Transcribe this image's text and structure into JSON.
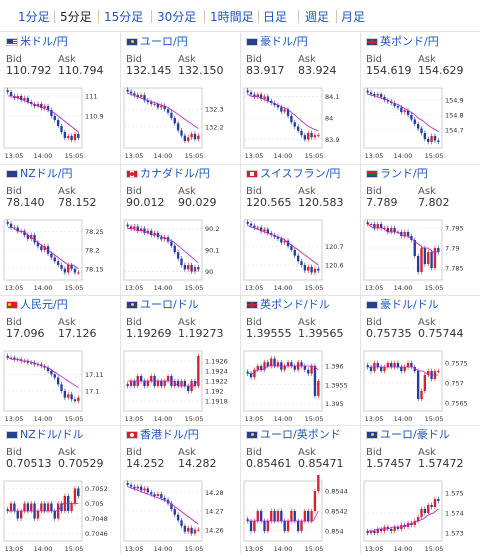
{
  "tabs": [
    {
      "label": "1分足",
      "active": false
    },
    {
      "label": "5分足",
      "active": true
    },
    {
      "label": "15分足",
      "active": false
    },
    {
      "label": "30分足",
      "active": false
    },
    {
      "label": "1時間足",
      "active": false
    },
    {
      "label": "日足",
      "active": false
    },
    {
      "label": "週足",
      "active": false
    },
    {
      "label": "月足",
      "active": false
    }
  ],
  "labels": {
    "bid": "Bid",
    "ask": "Ask"
  },
  "colors": {
    "link": "#1a56c4",
    "up": "#d8202e",
    "down": "#1f3fa5",
    "ma": "#c01cc8",
    "grid": "#dcdcdc"
  },
  "panels": [
    {
      "flag": "us",
      "name": "米ドル/円",
      "bid": "110.792",
      "ask": "110.794",
      "chart_data": {
        "type": "candlestick",
        "x_ticks": [
          "13:05",
          "14:00",
          "15:05"
        ],
        "y_ticks": [
          "111",
          "110.9"
        ],
        "ylim": [
          110.74,
          111.04
        ],
        "closes": [
          111.02,
          111.0,
          110.99,
          111.0,
          110.98,
          110.99,
          110.97,
          110.96,
          110.95,
          110.96,
          110.94,
          110.95,
          110.93,
          110.9,
          110.88,
          110.85,
          110.82,
          110.79,
          110.8,
          110.78,
          110.81,
          110.79
        ],
        "ma": [
          111.0,
          111.0,
          110.99,
          110.98,
          110.97,
          110.96,
          110.95,
          110.94,
          110.93,
          110.92,
          110.9,
          110.88,
          110.86,
          110.84,
          110.82
        ]
      }
    },
    {
      "flag": "eu",
      "name": "ユーロ/円",
      "bid": "132.145",
      "ask": "132.150",
      "chart_data": {
        "type": "candlestick",
        "x_ticks": [
          "13:05",
          "14:00",
          "15:05"
        ],
        "y_ticks": [
          "132.3",
          "132.2"
        ],
        "ylim": [
          132.08,
          132.42
        ],
        "closes": [
          132.4,
          132.39,
          132.38,
          132.37,
          132.38,
          132.35,
          132.34,
          132.33,
          132.33,
          132.31,
          132.32,
          132.3,
          132.28,
          132.25,
          132.22,
          132.18,
          132.15,
          132.12,
          132.14,
          132.16,
          132.13,
          132.15
        ],
        "ma": [
          132.39,
          132.38,
          132.37,
          132.36,
          132.35,
          132.34,
          132.33,
          132.32,
          132.31,
          132.29,
          132.27,
          132.25,
          132.23,
          132.21,
          132.19
        ]
      }
    },
    {
      "flag": "au",
      "name": "豪ドル/円",
      "bid": "83.917",
      "ask": "83.924",
      "chart_data": {
        "type": "candlestick",
        "x_ticks": [
          "13:05",
          "14:00",
          "15:05"
        ],
        "y_ticks": [
          "84.1",
          "84",
          "83.9"
        ],
        "ylim": [
          83.86,
          84.14
        ],
        "closes": [
          84.12,
          84.11,
          84.1,
          84.11,
          84.09,
          84.1,
          84.08,
          84.07,
          84.06,
          84.05,
          84.03,
          84.04,
          84.01,
          83.98,
          83.96,
          83.94,
          83.92,
          83.9,
          83.93,
          83.91,
          83.92,
          83.92
        ],
        "ma": [
          84.11,
          84.1,
          84.1,
          84.09,
          84.08,
          84.07,
          84.06,
          84.05,
          84.04,
          84.02,
          84.0,
          83.98,
          83.96,
          83.95,
          83.94
        ]
      }
    },
    {
      "flag": "gb",
      "name": "英ポンド/円",
      "bid": "154.619",
      "ask": "154.629",
      "chart_data": {
        "type": "candlestick",
        "x_ticks": [
          "13:05",
          "14:00",
          "15:05"
        ],
        "y_ticks": [
          "154.9",
          "154.8",
          "154.7"
        ],
        "ylim": [
          154.58,
          154.98
        ],
        "closes": [
          154.95,
          154.94,
          154.93,
          154.94,
          154.92,
          154.9,
          154.89,
          154.88,
          154.86,
          154.85,
          154.82,
          154.83,
          154.8,
          154.77,
          154.74,
          154.71,
          154.68,
          154.64,
          154.62,
          154.66,
          154.63,
          154.62
        ],
        "ma": [
          154.94,
          154.93,
          154.92,
          154.91,
          154.9,
          154.88,
          154.87,
          154.85,
          154.83,
          154.81,
          154.78,
          154.76,
          154.73,
          154.71,
          154.69
        ]
      }
    },
    {
      "flag": "nz",
      "name": "NZドル/円",
      "bid": "78.140",
      "ask": "78.152",
      "chart_data": {
        "type": "candlestick",
        "x_ticks": [
          "13:05",
          "14:00",
          "15:05"
        ],
        "y_ticks": [
          "78.25",
          "78.2",
          "78.15"
        ],
        "ylim": [
          78.12,
          78.28
        ],
        "closes": [
          78.27,
          78.26,
          78.26,
          78.25,
          78.25,
          78.24,
          78.23,
          78.24,
          78.22,
          78.21,
          78.2,
          78.21,
          78.19,
          78.18,
          78.17,
          78.16,
          78.15,
          78.14,
          78.16,
          78.15,
          78.14,
          78.14
        ],
        "ma": [
          78.26,
          78.26,
          78.25,
          78.25,
          78.24,
          78.23,
          78.22,
          78.21,
          78.2,
          78.19,
          78.18,
          78.17,
          78.16,
          78.16,
          78.15
        ]
      }
    },
    {
      "flag": "ca",
      "name": "カナダドル/円",
      "bid": "90.012",
      "ask": "90.029",
      "chart_data": {
        "type": "candlestick",
        "x_ticks": [
          "13:05",
          "14:00",
          "15:05"
        ],
        "y_ticks": [
          "90.2",
          "90.1",
          "90"
        ],
        "ylim": [
          89.96,
          90.24
        ],
        "closes": [
          90.21,
          90.2,
          90.21,
          90.19,
          90.2,
          90.18,
          90.19,
          90.17,
          90.18,
          90.16,
          90.15,
          90.16,
          90.14,
          90.12,
          90.09,
          90.06,
          90.03,
          90.01,
          90.03,
          90.0,
          90.02,
          90.01
        ],
        "ma": [
          90.2,
          90.2,
          90.19,
          90.19,
          90.18,
          90.17,
          90.17,
          90.16,
          90.15,
          90.14,
          90.12,
          90.1,
          90.08,
          90.06,
          90.04
        ]
      }
    },
    {
      "flag": "ch",
      "name": "スイスフラン/円",
      "bid": "120.565",
      "ask": "120.583",
      "chart_data": {
        "type": "candlestick",
        "x_ticks": [
          "13:05",
          "14:00",
          "15:05"
        ],
        "y_ticks": [
          "120.7",
          "120.6"
        ],
        "ylim": [
          120.52,
          120.84
        ],
        "closes": [
          120.82,
          120.81,
          120.8,
          120.8,
          120.78,
          120.79,
          120.77,
          120.76,
          120.75,
          120.74,
          120.72,
          120.73,
          120.7,
          120.68,
          120.65,
          120.62,
          120.6,
          120.57,
          120.59,
          120.56,
          120.58,
          120.57
        ],
        "ma": [
          120.81,
          120.8,
          120.79,
          120.78,
          120.77,
          120.76,
          120.75,
          120.74,
          120.72,
          120.7,
          120.68,
          120.66,
          120.64,
          120.62,
          120.6
        ]
      }
    },
    {
      "flag": "za",
      "name": "ランド/円",
      "bid": "7.789",
      "ask": "7.802",
      "chart_data": {
        "type": "candlestick",
        "x_ticks": [
          "13:05",
          "14:00",
          "15:05"
        ],
        "y_ticks": [
          "7.795",
          "7.79",
          "7.785"
        ],
        "ylim": [
          7.782,
          7.797
        ],
        "closes": [
          7.796,
          7.796,
          7.795,
          7.796,
          7.795,
          7.795,
          7.794,
          7.795,
          7.794,
          7.794,
          7.793,
          7.794,
          7.793,
          7.792,
          7.788,
          7.784,
          7.79,
          7.786,
          7.789,
          7.785,
          7.79,
          7.789
        ],
        "ma": [
          7.796,
          7.795,
          7.795,
          7.795,
          7.794,
          7.794,
          7.794,
          7.793,
          7.793,
          7.792,
          7.791,
          7.79,
          7.79,
          7.789,
          7.789
        ]
      }
    },
    {
      "flag": "cn",
      "name": "人民元/円",
      "bid": "17.096",
      "ask": "17.126",
      "chart_data": {
        "type": "candlestick",
        "x_ticks": [
          "13:05",
          "14:00",
          "15:05"
        ],
        "y_ticks": [
          "17.11",
          "17.1"
        ],
        "ylim": [
          17.088,
          17.124
        ],
        "closes": [
          17.12,
          17.12,
          17.119,
          17.119,
          17.118,
          17.118,
          17.117,
          17.117,
          17.116,
          17.116,
          17.115,
          17.114,
          17.112,
          17.11,
          17.108,
          17.104,
          17.1,
          17.096,
          17.098,
          17.095,
          17.094,
          17.096
        ],
        "ma": [
          17.12,
          17.119,
          17.119,
          17.118,
          17.118,
          17.117,
          17.116,
          17.115,
          17.114,
          17.112,
          17.11,
          17.108,
          17.106,
          17.104,
          17.102
        ]
      }
    },
    {
      "flag": "eu",
      "name": "ユーロ/ドル",
      "bid": "1.19269",
      "ask": "1.19273",
      "chart_data": {
        "type": "candlestick",
        "x_ticks": [
          "13:05",
          "14:00",
          "15:05"
        ],
        "y_ticks": [
          "1.1926",
          "1.1924",
          "1.1922",
          "1.192",
          "1.1918"
        ],
        "ylim": [
          1.1916,
          1.1928
        ],
        "closes": [
          1.1921,
          1.1922,
          1.1921,
          1.1923,
          1.1922,
          1.1921,
          1.1922,
          1.1923,
          1.1921,
          1.1922,
          1.1921,
          1.1922,
          1.1923,
          1.1921,
          1.1922,
          1.1921,
          1.1922,
          1.1921,
          1.192,
          1.1922,
          1.1921,
          1.1927
        ],
        "ma": [
          1.1922,
          1.1922,
          1.1922,
          1.1922,
          1.1922,
          1.1922,
          1.1922,
          1.1922,
          1.1922,
          1.1922,
          1.1921,
          1.1921,
          1.1921,
          1.1921,
          1.1922
        ]
      }
    },
    {
      "flag": "gb",
      "name": "英ポンド/ドル",
      "bid": "1.39555",
      "ask": "1.39565",
      "chart_data": {
        "type": "candlestick",
        "x_ticks": [
          "13:05",
          "14:00",
          "15:05"
        ],
        "y_ticks": [
          "1.396",
          "1.3955",
          "1.395"
        ],
        "ylim": [
          1.3948,
          1.3964
        ],
        "closes": [
          1.3958,
          1.3957,
          1.3959,
          1.396,
          1.3959,
          1.3961,
          1.396,
          1.3962,
          1.396,
          1.3961,
          1.3959,
          1.396,
          1.3961,
          1.396,
          1.3959,
          1.3961,
          1.396,
          1.3959,
          1.3958,
          1.396,
          1.3952,
          1.3956
        ],
        "ma": [
          1.3958,
          1.3958,
          1.3959,
          1.3959,
          1.396,
          1.396,
          1.396,
          1.396,
          1.396,
          1.396,
          1.396,
          1.396,
          1.396,
          1.396,
          1.3959
        ]
      }
    },
    {
      "flag": "au",
      "name": "豪ドル/ドル",
      "bid": "0.75735",
      "ask": "0.75744",
      "chart_data": {
        "type": "candlestick",
        "x_ticks": [
          "13:05",
          "14:00",
          "15:05"
        ],
        "y_ticks": [
          "0.7575",
          "0.757",
          "0.7565"
        ],
        "ylim": [
          0.7563,
          0.7578
        ],
        "closes": [
          0.7574,
          0.7573,
          0.7575,
          0.7574,
          0.7573,
          0.7574,
          0.7575,
          0.7574,
          0.7575,
          0.7574,
          0.7573,
          0.7574,
          0.7575,
          0.7574,
          0.7573,
          0.7566,
          0.7568,
          0.7572,
          0.7573,
          0.7571,
          0.7573,
          0.7573
        ],
        "ma": [
          0.7574,
          0.7574,
          0.7574,
          0.7574,
          0.7574,
          0.7574,
          0.7574,
          0.7574,
          0.7574,
          0.7574,
          0.7573,
          0.7573,
          0.7572,
          0.7572,
          0.7572
        ]
      }
    },
    {
      "flag": "nz",
      "name": "NZドル/ドル",
      "bid": "0.70513",
      "ask": "0.70529",
      "chart_data": {
        "type": "candlestick",
        "x_ticks": [
          "13:05",
          "14:00",
          "15:05"
        ],
        "y_ticks": [
          "0.7052",
          "0.705",
          "0.7048",
          "0.7046"
        ],
        "ylim": [
          0.7045,
          0.7053
        ],
        "closes": [
          0.7049,
          0.705,
          0.7049,
          0.7048,
          0.7049,
          0.705,
          0.7049,
          0.705,
          0.7048,
          0.7049,
          0.705,
          0.7049,
          0.705,
          0.7049,
          0.7048,
          0.705,
          0.7049,
          0.7051,
          0.7049,
          0.705,
          0.7052,
          0.7051
        ],
        "ma": [
          0.7049,
          0.7049,
          0.7049,
          0.7049,
          0.7049,
          0.7049,
          0.7049,
          0.7049,
          0.7049,
          0.7049,
          0.7049,
          0.705,
          0.705,
          0.705,
          0.705
        ]
      }
    },
    {
      "flag": "hk",
      "name": "香港ドル/円",
      "bid": "14.252",
      "ask": "14.282",
      "chart_data": {
        "type": "candlestick",
        "x_ticks": [
          "13:05",
          "14:00",
          "15:05"
        ],
        "y_ticks": [
          "14.28",
          "14.27",
          "14.26"
        ],
        "ylim": [
          14.254,
          14.286
        ],
        "closes": [
          14.284,
          14.283,
          14.282,
          14.283,
          14.281,
          14.282,
          14.28,
          14.279,
          14.278,
          14.279,
          14.277,
          14.276,
          14.274,
          14.271,
          14.268,
          14.265,
          14.262,
          14.259,
          14.261,
          14.258,
          14.26,
          14.26
        ],
        "ma": [
          14.283,
          14.282,
          14.281,
          14.28,
          14.279,
          14.278,
          14.277,
          14.276,
          14.275,
          14.273,
          14.271,
          14.269,
          14.267,
          14.265,
          14.263
        ]
      }
    },
    {
      "flag": "eu",
      "name": "ユーロ/英ポンド",
      "bid": "0.85461",
      "ask": "0.85471",
      "chart_data": {
        "type": "candlestick",
        "x_ticks": [
          "13:05",
          "14:00",
          "15:05"
        ],
        "y_ticks": [
          "0.8544",
          "0.8542",
          "0.854"
        ],
        "ylim": [
          0.8539,
          0.8545
        ],
        "closes": [
          0.8541,
          0.854,
          0.8541,
          0.8542,
          0.8541,
          0.854,
          0.8541,
          0.8542,
          0.8541,
          0.8542,
          0.8541,
          0.854,
          0.8541,
          0.8542,
          0.8541,
          0.854,
          0.8541,
          0.8542,
          0.8541,
          0.8542,
          0.8544,
          0.8546
        ],
        "ma": [
          0.8541,
          0.8541,
          0.8541,
          0.8541,
          0.8541,
          0.8541,
          0.8541,
          0.8541,
          0.8541,
          0.8541,
          0.8541,
          0.8541,
          0.8541,
          0.8541,
          0.8542
        ]
      }
    },
    {
      "flag": "eu",
      "name": "ユーロ/豪ドル",
      "bid": "1.57457",
      "ask": "1.57472",
      "chart_data": {
        "type": "candlestick",
        "x_ticks": [
          "13:05",
          "14:00",
          "15:05"
        ],
        "y_ticks": [
          "1.575",
          "1.574",
          "1.573"
        ],
        "ylim": [
          1.5726,
          1.5756
        ],
        "closes": [
          1.573,
          1.5731,
          1.573,
          1.5732,
          1.5731,
          1.5733,
          1.5732,
          1.5731,
          1.5733,
          1.5732,
          1.5734,
          1.5733,
          1.5735,
          1.5734,
          1.5736,
          1.5738,
          1.5742,
          1.574,
          1.5744,
          1.5743,
          1.5747,
          1.5746
        ],
        "ma": [
          1.5731,
          1.5731,
          1.5732,
          1.5732,
          1.5732,
          1.5733,
          1.5733,
          1.5733,
          1.5734,
          1.5735,
          1.5736,
          1.5737,
          1.5739,
          1.574,
          1.5742
        ]
      }
    }
  ]
}
